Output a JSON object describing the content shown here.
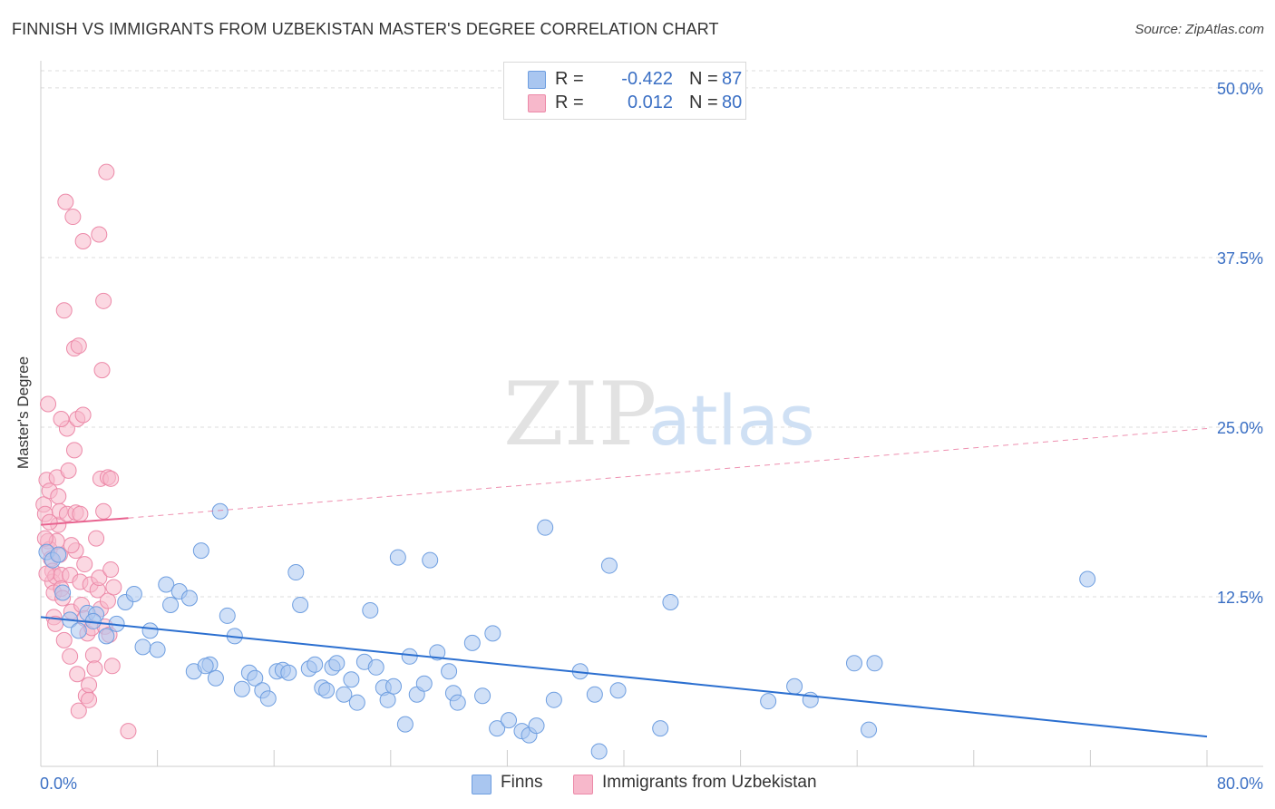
{
  "header": {
    "title": "FINNISH VS IMMIGRANTS FROM UZBEKISTAN MASTER'S DEGREE CORRELATION CHART",
    "source": "Source: ZipAtlas.com"
  },
  "watermark": {
    "zip": "ZIP",
    "atlas": "atlas"
  },
  "legend_top": {
    "rows": [
      {
        "r_label": "R =",
        "r_value": "-0.422",
        "n_label": "N =",
        "n_value": "87",
        "color": "#a9c6f0"
      },
      {
        "r_label": "R =",
        "r_value": "0.012",
        "n_label": "N =",
        "n_value": "80",
        "color": "#f7b8cb"
      }
    ]
  },
  "legend_bottom": [
    {
      "label": "Finns",
      "color": "#a9c6f0"
    },
    {
      "label": "Immigrants from Uzbekistan",
      "color": "#f7b8cb"
    }
  ],
  "colors": {
    "finns_fill": "#a9c6f0",
    "finns_stroke": "#6e9ee0",
    "finns_line": "#2b6fd0",
    "uzb_fill": "#f7b8cb",
    "uzb_stroke": "#ec89a8",
    "uzb_line": "#e8628f",
    "axis_text": "#3a6fc4",
    "grid": "#dddddd"
  },
  "chart_data": {
    "type": "scatter",
    "title": "FINNISH VS IMMIGRANTS FROM UZBEKISTAN MASTER'S DEGREE CORRELATION CHART",
    "xlabel": "",
    "ylabel": "Master's Degree",
    "xlim": [
      0,
      80
    ],
    "ylim": [
      0,
      52
    ],
    "x_tick_labels": [
      "0.0%",
      "80.0%"
    ],
    "y_ticks": [
      12.5,
      25.0,
      37.5,
      50.0
    ],
    "y_tick_labels": [
      "12.5%",
      "25.0%",
      "37.5%",
      "50.0%"
    ],
    "grid": "horizontal dashed",
    "legend_placement": "top-center and bottom",
    "series": [
      {
        "name": "Finns",
        "r": -0.422,
        "n": 87,
        "trend": {
          "x": [
            0,
            80
          ],
          "y": [
            11.0,
            2.2
          ]
        },
        "points": [
          [
            0.4,
            15.8
          ],
          [
            0.8,
            15.2
          ],
          [
            1.2,
            15.6
          ],
          [
            1.5,
            12.8
          ],
          [
            2.0,
            10.8
          ],
          [
            2.6,
            10.0
          ],
          [
            3.2,
            11.3
          ],
          [
            3.8,
            11.2
          ],
          [
            4.5,
            9.6
          ],
          [
            5.2,
            10.5
          ],
          [
            5.8,
            12.1
          ],
          [
            6.4,
            12.7
          ],
          [
            7.0,
            8.8
          ],
          [
            7.5,
            10.0
          ],
          [
            8.0,
            8.6
          ],
          [
            8.6,
            13.4
          ],
          [
            8.9,
            11.9
          ],
          [
            9.5,
            12.9
          ],
          [
            10.2,
            12.4
          ],
          [
            10.5,
            7.0
          ],
          [
            11.0,
            15.9
          ],
          [
            11.6,
            7.5
          ],
          [
            12.0,
            6.5
          ],
          [
            12.3,
            18.8
          ],
          [
            12.8,
            11.1
          ],
          [
            13.3,
            9.6
          ],
          [
            13.8,
            5.7
          ],
          [
            14.3,
            6.9
          ],
          [
            14.7,
            6.5
          ],
          [
            15.2,
            5.6
          ],
          [
            15.6,
            5.0
          ],
          [
            16.2,
            7.0
          ],
          [
            16.6,
            7.1
          ],
          [
            17.0,
            6.9
          ],
          [
            17.5,
            14.3
          ],
          [
            17.8,
            11.9
          ],
          [
            18.4,
            7.2
          ],
          [
            18.8,
            7.5
          ],
          [
            19.3,
            5.8
          ],
          [
            19.6,
            5.6
          ],
          [
            20.0,
            7.3
          ],
          [
            20.3,
            7.6
          ],
          [
            20.8,
            5.3
          ],
          [
            21.3,
            6.4
          ],
          [
            21.7,
            4.7
          ],
          [
            22.2,
            7.7
          ],
          [
            22.6,
            11.5
          ],
          [
            23.0,
            7.3
          ],
          [
            23.5,
            5.8
          ],
          [
            23.8,
            4.9
          ],
          [
            24.2,
            5.9
          ],
          [
            24.5,
            15.4
          ],
          [
            25.0,
            3.1
          ],
          [
            25.3,
            8.1
          ],
          [
            25.8,
            5.3
          ],
          [
            26.3,
            6.1
          ],
          [
            26.7,
            15.2
          ],
          [
            27.2,
            8.4
          ],
          [
            28.0,
            7.0
          ],
          [
            28.3,
            5.4
          ],
          [
            28.6,
            4.7
          ],
          [
            29.6,
            9.1
          ],
          [
            30.3,
            5.2
          ],
          [
            31.0,
            9.8
          ],
          [
            31.3,
            2.8
          ],
          [
            32.1,
            3.4
          ],
          [
            33.0,
            2.6
          ],
          [
            33.5,
            2.3
          ],
          [
            34.0,
            3.0
          ],
          [
            34.6,
            17.6
          ],
          [
            35.2,
            4.9
          ],
          [
            37.0,
            7.0
          ],
          [
            38.3,
            1.1
          ],
          [
            39.0,
            14.8
          ],
          [
            39.6,
            5.6
          ],
          [
            42.5,
            2.8
          ],
          [
            43.2,
            12.1
          ],
          [
            49.9,
            4.8
          ],
          [
            51.7,
            5.9
          ],
          [
            52.8,
            4.9
          ],
          [
            55.8,
            7.6
          ],
          [
            56.8,
            2.7
          ],
          [
            57.2,
            7.6
          ],
          [
            71.8,
            13.8
          ],
          [
            38.0,
            5.3
          ],
          [
            11.3,
            7.4
          ],
          [
            3.6,
            10.7
          ]
        ]
      },
      {
        "name": "Immigrants from Uzbekistan",
        "r": 0.012,
        "n": 80,
        "trend": {
          "x": [
            0,
            6
          ],
          "y": [
            17.8,
            18.3
          ],
          "dashed_to": {
            "x": 80,
            "y": 24.9
          }
        },
        "points": [
          [
            0.2,
            19.3
          ],
          [
            0.3,
            18.6
          ],
          [
            0.4,
            21.1
          ],
          [
            0.5,
            16.6
          ],
          [
            0.6,
            20.3
          ],
          [
            0.6,
            16.0
          ],
          [
            0.7,
            15.3
          ],
          [
            0.8,
            14.4
          ],
          [
            0.8,
            13.6
          ],
          [
            0.9,
            12.8
          ],
          [
            0.9,
            11.0
          ],
          [
            1.0,
            10.5
          ],
          [
            0.5,
            26.7
          ],
          [
            1.0,
            14.0
          ],
          [
            1.1,
            21.3
          ],
          [
            1.2,
            19.9
          ],
          [
            1.2,
            17.8
          ],
          [
            1.3,
            18.8
          ],
          [
            1.3,
            15.6
          ],
          [
            1.4,
            14.1
          ],
          [
            1.4,
            13.1
          ],
          [
            1.5,
            12.4
          ],
          [
            1.6,
            33.6
          ],
          [
            1.7,
            41.6
          ],
          [
            1.8,
            24.9
          ],
          [
            1.8,
            18.6
          ],
          [
            1.9,
            21.8
          ],
          [
            2.0,
            14.1
          ],
          [
            2.0,
            8.1
          ],
          [
            2.1,
            11.4
          ],
          [
            2.2,
            40.5
          ],
          [
            2.3,
            30.8
          ],
          [
            2.3,
            23.3
          ],
          [
            2.4,
            18.7
          ],
          [
            2.4,
            15.9
          ],
          [
            2.5,
            25.6
          ],
          [
            2.5,
            6.8
          ],
          [
            2.6,
            4.1
          ],
          [
            2.6,
            31.0
          ],
          [
            2.7,
            13.6
          ],
          [
            2.8,
            11.9
          ],
          [
            2.9,
            38.7
          ],
          [
            2.9,
            25.9
          ],
          [
            3.0,
            14.9
          ],
          [
            3.0,
            10.9
          ],
          [
            3.1,
            5.2
          ],
          [
            3.2,
            9.8
          ],
          [
            3.3,
            4.9
          ],
          [
            3.4,
            13.4
          ],
          [
            3.5,
            10.2
          ],
          [
            3.6,
            8.2
          ],
          [
            3.7,
            7.2
          ],
          [
            3.8,
            16.8
          ],
          [
            3.9,
            13.0
          ],
          [
            4.0,
            13.9
          ],
          [
            4.1,
            11.6
          ],
          [
            4.2,
            29.2
          ],
          [
            4.3,
            34.3
          ],
          [
            4.4,
            10.3
          ],
          [
            4.5,
            43.8
          ],
          [
            4.6,
            12.2
          ],
          [
            4.7,
            9.7
          ],
          [
            4.8,
            14.5
          ],
          [
            4.9,
            7.4
          ],
          [
            5.0,
            13.2
          ],
          [
            4.0,
            39.2
          ],
          [
            4.1,
            21.2
          ],
          [
            4.3,
            18.8
          ],
          [
            4.6,
            21.3
          ],
          [
            4.8,
            21.2
          ],
          [
            6.0,
            2.6
          ],
          [
            0.4,
            14.2
          ],
          [
            0.6,
            18.0
          ],
          [
            1.4,
            25.6
          ],
          [
            3.3,
            6.0
          ],
          [
            2.1,
            16.3
          ],
          [
            1.1,
            16.6
          ],
          [
            0.3,
            16.8
          ],
          [
            2.7,
            18.6
          ],
          [
            1.6,
            9.3
          ]
        ]
      }
    ]
  }
}
